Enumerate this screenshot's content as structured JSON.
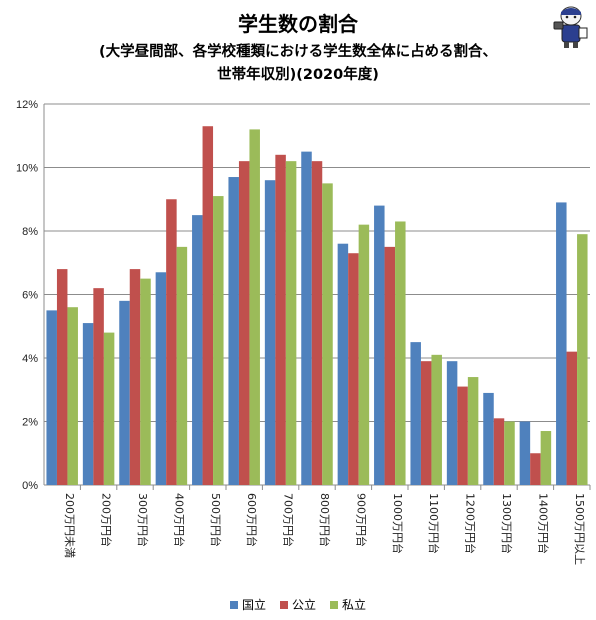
{
  "chart_data": {
    "type": "bar",
    "title": "学生数の割合",
    "subtitle_line1": "(大学昼間部、各学校種類における学生数全体に占める割合、",
    "subtitle_line2": "世帯年収別)(2020年度)",
    "categories": [
      "200万円未満",
      "200万円台",
      "300万円台",
      "400万円台",
      "500万円台",
      "600万円台",
      "700万円台",
      "800万円台",
      "900万円台",
      "1000万円台",
      "1100万円台",
      "1200万円台",
      "1300万円台",
      "1400万円台",
      "1500万円以上"
    ],
    "series": [
      {
        "name": "国立",
        "color": "#4F81BD",
        "values": [
          5.5,
          5.1,
          5.8,
          6.7,
          8.5,
          9.7,
          9.6,
          10.5,
          7.6,
          8.8,
          4.5,
          3.9,
          2.9,
          2.0,
          8.9
        ]
      },
      {
        "name": "公立",
        "color": "#C0504D",
        "values": [
          6.8,
          6.2,
          6.8,
          9.0,
          11.3,
          10.2,
          10.4,
          10.2,
          7.3,
          7.5,
          3.9,
          3.1,
          2.1,
          1.0,
          4.2
        ]
      },
      {
        "name": "私立",
        "color": "#9BBB59",
        "values": [
          5.6,
          4.8,
          6.5,
          7.5,
          9.1,
          11.2,
          10.2,
          9.5,
          8.2,
          8.3,
          4.1,
          3.4,
          2.0,
          1.7,
          7.9
        ]
      }
    ],
    "ylim": [
      0,
      12
    ],
    "yticks": [
      "0%",
      "2%",
      "4%",
      "6%",
      "8%",
      "10%",
      "12%"
    ],
    "grid": true,
    "legend_position": "bottom"
  },
  "mascot_icon": "reporter-mascot-icon"
}
